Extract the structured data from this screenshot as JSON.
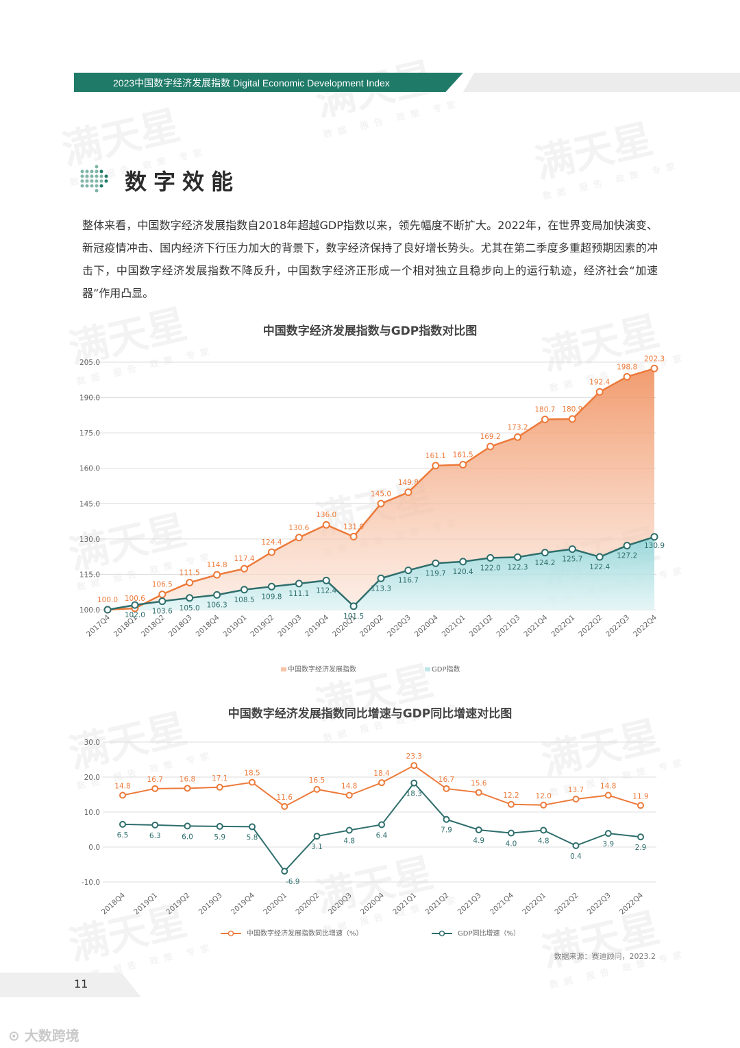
{
  "header": {
    "title": "2023中国数字经济发展指数  Digital Economic Development Index"
  },
  "section": {
    "title": "数字效能"
  },
  "intro": "整体来看，中国数字经济发展指数自2018年超越GDP指数以来，领先幅度不断扩大。2022年，在世界变局加快演变、新冠疫情冲击、国内经济下行压力加大的背景下，数字经济保持了良好增长势头。尤其在第二季度多重超预期因素的冲击下，中国数字经济发展指数不降反升，中国数字经济正形成一个相对独立且稳步向上的运行轨迹，经济社会“加速器”作用凸显。",
  "watermark": {
    "main": "满天星",
    "sub": "数据 报告 政策 专家"
  },
  "colors": {
    "orange": "#ec7a3a",
    "teal": "#2e6e6c",
    "header": "#1f7a68"
  },
  "chart_data": [
    {
      "type": "area",
      "title": "中国数字经济发展指数与GDP指数对比图",
      "categories": [
        "2017Q4",
        "2018Q1",
        "2018Q2",
        "2018Q3",
        "2018Q4",
        "2019Q1",
        "2019Q2",
        "2019Q3",
        "2019Q4",
        "2020Q1",
        "2020Q2",
        "2020Q3",
        "2020Q4",
        "2021Q1",
        "2021Q2",
        "2021Q3",
        "2021Q4",
        "2022Q1",
        "2022Q2",
        "2022Q3",
        "2022Q4"
      ],
      "series": [
        {
          "name": "中国数字经济发展指数",
          "color": "#ec7a3a",
          "values": [
            100.0,
            100.6,
            106.5,
            111.5,
            114.8,
            117.4,
            124.4,
            130.6,
            136.0,
            131.0,
            145.0,
            149.8,
            161.1,
            161.5,
            169.2,
            173.2,
            180.7,
            180.9,
            192.4,
            198.8,
            202.3
          ]
        },
        {
          "name": "GDP指数",
          "color": "#2e6e6c",
          "values": [
            100.0,
            102.0,
            103.6,
            105.0,
            106.3,
            108.5,
            109.8,
            111.1,
            112.4,
            101.5,
            113.3,
            116.7,
            119.7,
            120.4,
            122.0,
            122.3,
            124.2,
            125.7,
            122.4,
            127.2,
            130.9
          ]
        }
      ],
      "yticks": [
        "100.0",
        "115.0",
        "130.0",
        "145.0",
        "160.0",
        "175.0",
        "190.0",
        "205.0"
      ],
      "ylim": [
        100,
        205
      ],
      "xlabel": "",
      "ylabel": "",
      "legend": "bottom"
    },
    {
      "type": "line",
      "title": "中国数字经济发展指数同比增速与GDP同比增速对比图",
      "categories": [
        "2018Q4",
        "2019Q1",
        "2019Q2",
        "2019Q3",
        "2019Q4",
        "2020Q1",
        "2020Q2",
        "2020Q3",
        "2020Q4",
        "2021Q1",
        "2021Q2",
        "2021Q3",
        "2021Q4",
        "2022Q1",
        "2022Q2",
        "2022Q3",
        "2022Q4"
      ],
      "series": [
        {
          "name": "中国数字经济发展指数同比增速（%）",
          "color": "#ec7a3a",
          "values": [
            14.8,
            16.7,
            16.8,
            17.1,
            18.5,
            11.6,
            16.5,
            14.8,
            18.4,
            23.3,
            16.7,
            15.6,
            12.2,
            12.0,
            13.7,
            14.8,
            11.9
          ]
        },
        {
          "name": "GDP同比增速（%）",
          "color": "#2e6e6c",
          "values": [
            6.5,
            6.3,
            6.0,
            5.9,
            5.8,
            -6.9,
            3.1,
            4.8,
            6.4,
            18.3,
            7.9,
            4.9,
            4.0,
            4.8,
            0.4,
            3.9,
            2.9
          ]
        }
      ],
      "yticks": [
        "-10.0",
        "0.0",
        "10.0",
        "20.0",
        "30.0"
      ],
      "ylim": [
        -10,
        30
      ],
      "xlabel": "",
      "ylabel": "",
      "legend": "bottom"
    }
  ],
  "source": "数据来源：赛迪顾问，2023.2",
  "page_number": "11",
  "footer_logo": "大数跨境"
}
